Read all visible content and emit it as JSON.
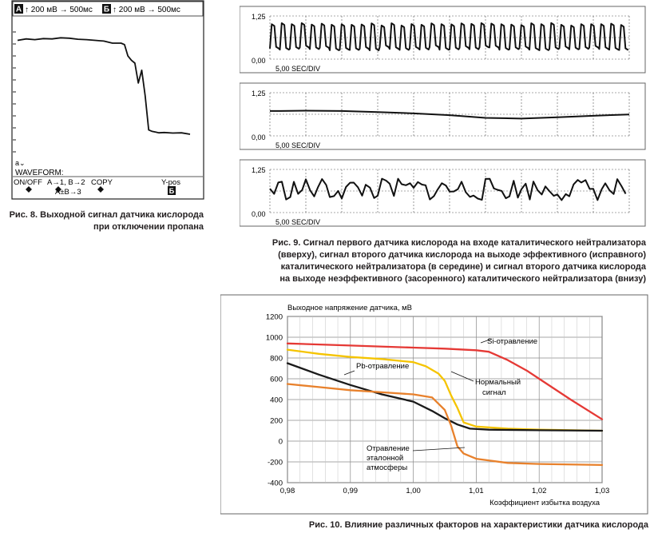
{
  "fig8": {
    "header_a_badge": "A",
    "header_a_text": "↑ 200 мВ  → 500мс",
    "header_b_badge": "Б",
    "header_b_text": "↑ 200 мВ  → 500мс",
    "cursor_text": "a⌄",
    "waveform_label": "WAVEFORM:",
    "menu_onoff": "ON/OFF",
    "menu_ab": "A→1, B→2",
    "menu_copy": "COPY",
    "menu_ypos": "Y-pos",
    "menu_sum": "A±B→3",
    "badge_b": "Б",
    "caption_line1": "Рис. 8. Выходной сигнал датчика кислорода",
    "caption_line2": "при отключении пропана",
    "chart_data": {
      "type": "line",
      "x_range": [
        0,
        10
      ],
      "y_range": [
        0,
        1000
      ],
      "series": [
        {
          "x": [
            0,
            0.5,
            1.0,
            1.5,
            2.0,
            2.5,
            3.0,
            3.5,
            4.0,
            4.5,
            5.0,
            5.5,
            6.0,
            6.2,
            6.4,
            6.6,
            6.8,
            7.0,
            7.2,
            7.4,
            7.6,
            7.8,
            8.0,
            8.2,
            8.5,
            9.0,
            9.5,
            10.0
          ],
          "y": [
            840,
            850,
            845,
            852,
            850,
            858,
            855,
            848,
            845,
            840,
            835,
            820,
            820,
            810,
            730,
            700,
            680,
            540,
            630,
            450,
            210,
            200,
            195,
            190,
            192,
            188,
            190,
            180
          ]
        }
      ]
    }
  },
  "fig9": {
    "caption_lines": [
      "Рис. 9. Сигнал первого датчика кислорода на входе каталитического нейтрализатора",
      "(вверху), сигнал второго датчика кислорода на выходе эффективного (исправного)",
      "каталитического нейтрализатора (в середине) и сигнал второго датчика кислорода",
      "на выходе неэффективного (засоренного) каталитического нейтрализатора (внизу)"
    ],
    "chart_data": [
      {
        "type": "line",
        "ytick_top": "1,25",
        "ytick_bottom": "0,00",
        "timebase": "5,00 SEC/DIV",
        "x_range": [
          0,
          10
        ],
        "y_range": [
          0,
          1.25
        ],
        "series": [
          {
            "pattern": "fast-oscillation",
            "periods": 36,
            "min": 0.25,
            "max": 1.05
          }
        ]
      },
      {
        "type": "line",
        "ytick_top": "1,25",
        "ytick_bottom": "0,00",
        "timebase": "5,00 SEC/DIV",
        "x_range": [
          0,
          10
        ],
        "y_range": [
          0,
          1.25
        ],
        "series": [
          {
            "x": [
              0,
              0.3,
              1,
              2,
              3,
              4,
              5,
              6,
              7,
              8,
              9,
              10
            ],
            "y": [
              0.72,
              0.72,
              0.73,
              0.72,
              0.69,
              0.65,
              0.6,
              0.52,
              0.5,
              0.54,
              0.58,
              0.62
            ]
          }
        ]
      },
      {
        "type": "line",
        "ytick_top": "1,25",
        "ytick_bottom": "0,00",
        "timebase": "5,00 SEC/DIV",
        "x_range": [
          0,
          10
        ],
        "y_range": [
          0,
          1.25
        ],
        "series": [
          {
            "pattern": "noisy-oscillation",
            "periods": 30,
            "min": 0.35,
            "max": 1.0
          }
        ]
      }
    ]
  },
  "fig10": {
    "caption": "Рис. 10. Влияние различных факторов на характеристики датчика кислорода",
    "chart_data": {
      "type": "line",
      "ylabel": "Выходное напряжение датчика, мВ",
      "xlabel": "Коэффициент избытка воздуха",
      "xlim": [
        0.98,
        1.03
      ],
      "ylim": [
        -400,
        1200
      ],
      "xticks": [
        "0,98",
        "0,99",
        "1,00",
        "1,01",
        "1,02",
        "1,03"
      ],
      "yticks": [
        "1200",
        "1000",
        "800",
        "600",
        "400",
        "200",
        "0",
        "-200",
        "-400"
      ],
      "grid": true,
      "series": [
        {
          "name": "Si-отравление",
          "color": "#e53935",
          "x": [
            0.98,
            0.99,
            1.0,
            1.005,
            1.01,
            1.012,
            1.015,
            1.018,
            1.02,
            1.025,
            1.03
          ],
          "y": [
            940,
            920,
            900,
            890,
            875,
            860,
            780,
            680,
            600,
            400,
            210
          ]
        },
        {
          "name": "Нормальный сигнал",
          "color": "#f5c400",
          "x": [
            0.98,
            0.985,
            0.99,
            0.995,
            1.0,
            1.002,
            1.004,
            1.005,
            1.006,
            1.007,
            1.008,
            1.01,
            1.015,
            1.02,
            1.03
          ],
          "y": [
            880,
            840,
            810,
            790,
            760,
            720,
            650,
            580,
            440,
            320,
            180,
            140,
            120,
            110,
            100
          ]
        },
        {
          "name": "Pb-отравление",
          "color": "#1a1a1a",
          "x": [
            0.98,
            0.985,
            0.99,
            0.995,
            1.0,
            1.003,
            1.005,
            1.007,
            1.009,
            1.012,
            1.02,
            1.03
          ],
          "y": [
            750,
            640,
            540,
            450,
            380,
            290,
            220,
            160,
            120,
            110,
            105,
            100
          ]
        },
        {
          "name": "Отравление эталонной атмосферы",
          "color": "#e8812c",
          "x": [
            0.98,
            0.985,
            0.99,
            0.995,
            1.0,
            1.003,
            1.005,
            1.006,
            1.007,
            1.008,
            1.01,
            1.015,
            1.02,
            1.03
          ],
          "y": [
            550,
            520,
            490,
            470,
            450,
            420,
            300,
            150,
            -50,
            -120,
            -170,
            -210,
            -220,
            -230
          ]
        }
      ]
    }
  }
}
